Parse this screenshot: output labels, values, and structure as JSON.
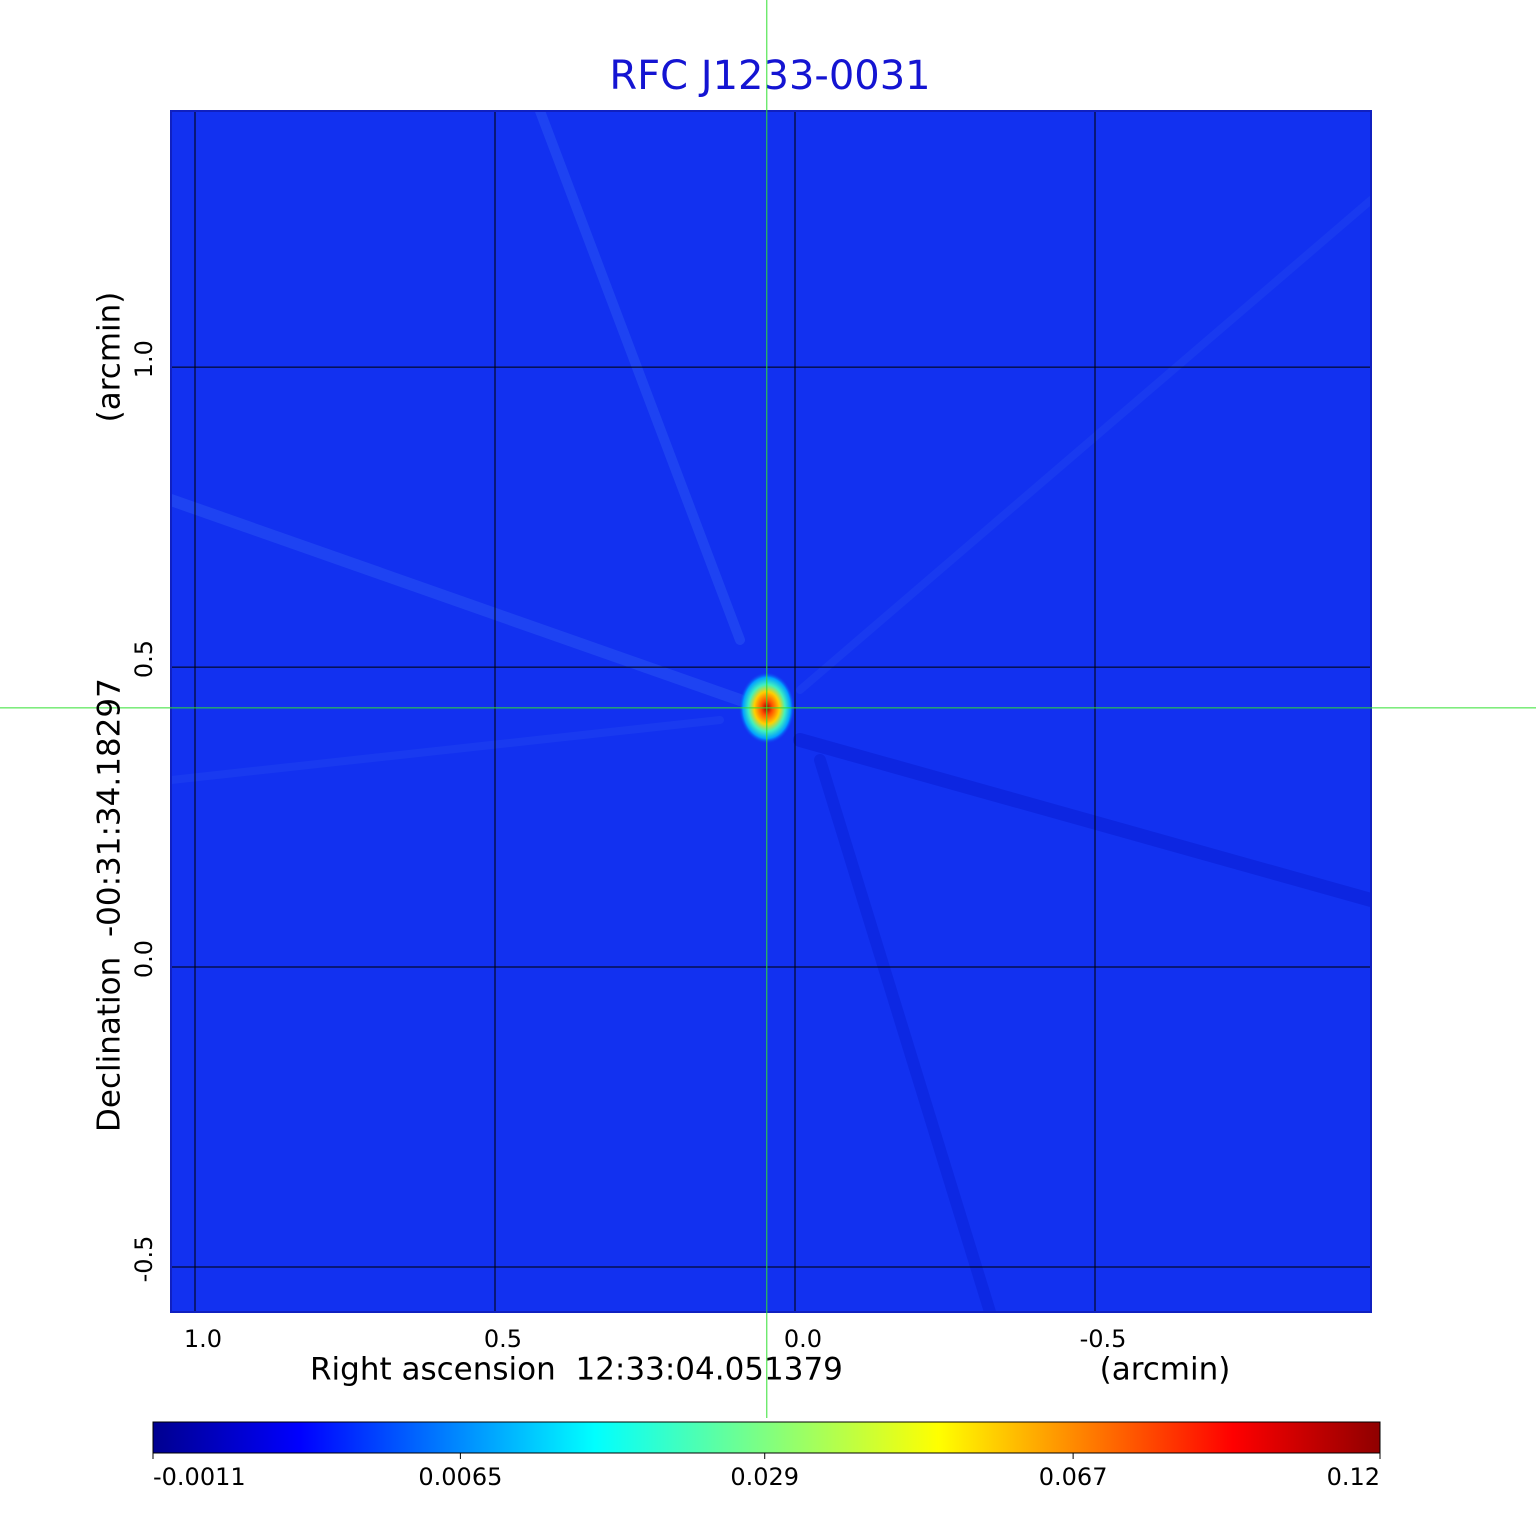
{
  "chart_data": {
    "type": "image",
    "title": "RFC J1233-0031",
    "xlabel": "Right ascension  12:33:04.051379",
    "xunit": "(arcmin)",
    "ylabel": "Declination  -00:31:34.18297",
    "yunit": "(arcmin)",
    "xlim": [
      1.04,
      -0.96
    ],
    "ylim": [
      -0.575,
      1.427
    ],
    "xticks": [
      {
        "value": 1.0,
        "label": "1.0"
      },
      0.5,
      {
        "value": 0.0,
        "label": "0.0"
      },
      -0.5
    ],
    "yticks": [
      -0.5,
      {
        "value": 0.0,
        "label": "0.0"
      },
      0.5,
      {
        "value": 1.0,
        "label": "1.0"
      }
    ],
    "grid": true,
    "source": {
      "x": 0.047,
      "y": 0.432
    },
    "colorbar": {
      "scale": "sqrt",
      "clim": [
        -0.0011,
        0.12
      ],
      "ticks": [
        -0.0011,
        0.0065,
        0.029,
        0.067,
        0.12
      ]
    }
  }
}
